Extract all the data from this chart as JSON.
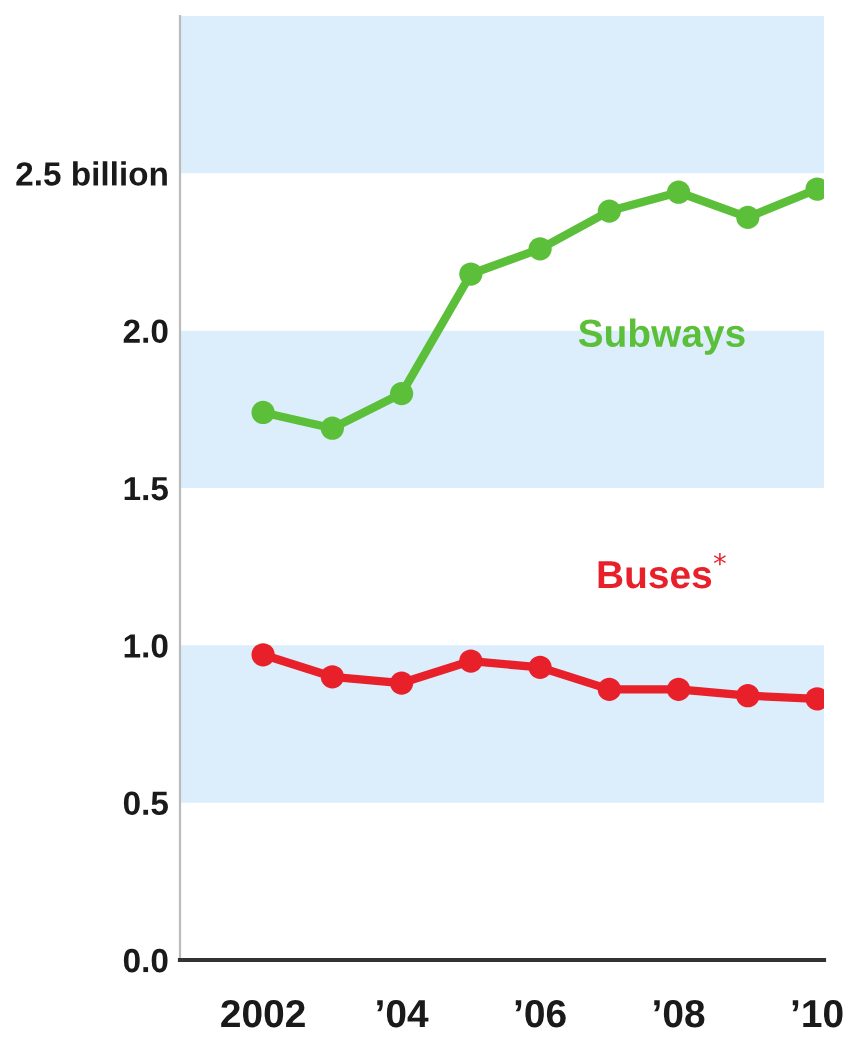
{
  "chart_data": {
    "type": "line",
    "x": [
      2002,
      2003,
      2004,
      2005,
      2006,
      2007,
      2008,
      2009,
      2010
    ],
    "series": [
      {
        "name": "Subways",
        "color": "#5cbf3a",
        "values": [
          1.74,
          1.69,
          1.8,
          2.18,
          2.26,
          2.38,
          2.44,
          2.36,
          2.45
        ]
      },
      {
        "name": "Buses$^{*}$",
        "color": "#e8202a",
        "values": [
          0.97,
          0.9,
          0.88,
          0.95,
          0.93,
          0.86,
          0.86,
          0.84,
          0.83
        ]
      }
    ],
    "xlim": [
      2000.8,
      2010.1
    ],
    "xticks": [
      {
        "value": 2002,
        "label": "2002"
      },
      {
        "value": 2004,
        "label": "’04"
      },
      {
        "value": 2006,
        "label": "’06"
      },
      {
        "value": 2008,
        "label": "’08"
      },
      {
        "value": 2010,
        "label": "’10"
      }
    ],
    "ylim": [
      0,
      3.0
    ],
    "yticks": [
      {
        "value": 0,
        "label": "0.0"
      },
      {
        "value": 0.5,
        "label": "0.5"
      },
      {
        "value": 1.0,
        "label": "1.0"
      },
      {
        "value": 1.5,
        "label": "1.5"
      },
      {
        "value": 2.0,
        "label": "2.0"
      },
      {
        "value": 2.5,
        "label": "2.5 billion"
      }
    ],
    "bands": [
      {
        "axis": "y",
        "from": 2.5,
        "to": 3.0,
        "color": "#dcedfb"
      },
      {
        "axis": "y",
        "from": 1.5,
        "to": 2.0,
        "color": "#dcedfb"
      },
      {
        "axis": "y",
        "from": 0.5,
        "to": 1.0,
        "color": "#dcedfb"
      }
    ],
    "marker": "circle",
    "line_style": "solid",
    "grid": false,
    "legend": false
  }
}
